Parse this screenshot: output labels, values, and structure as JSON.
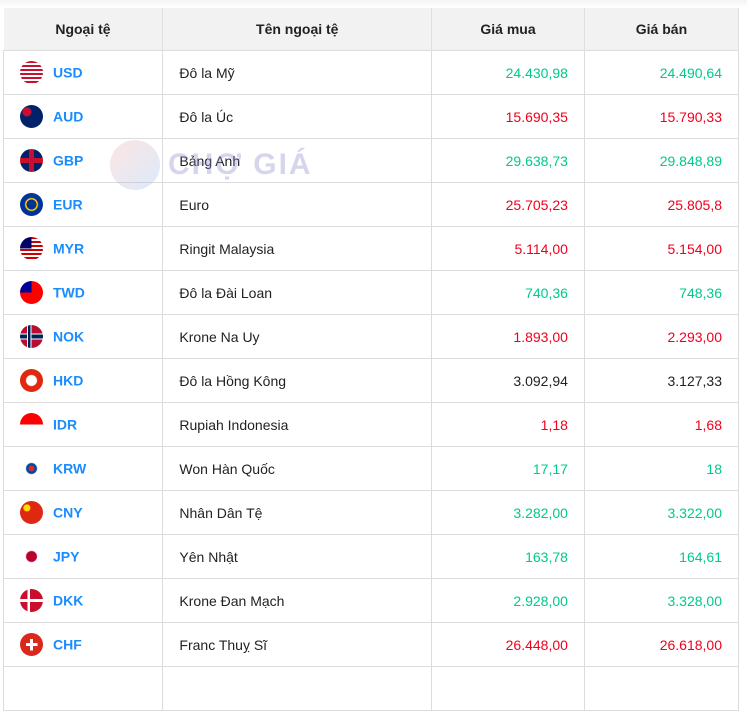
{
  "headers": [
    "Ngoại tệ",
    "Tên ngoại tệ",
    "Giá mua",
    "Giá bán"
  ],
  "watermark": "CHỢ GIÁ",
  "colors": {
    "up": "#00c98d",
    "down": "#f0001c",
    "code": "#1a8cff"
  },
  "rows": [
    {
      "code": "USD",
      "name": "Đô la Mỹ",
      "buy": "24.430,98",
      "sell": "24.490,64",
      "trend": "up",
      "flag": "us-flag"
    },
    {
      "code": "AUD",
      "name": "Đô la Úc",
      "buy": "15.690,35",
      "sell": "15.790,33",
      "trend": "down",
      "flag": "au-flag"
    },
    {
      "code": "GBP",
      "name": "Bảng Anh",
      "buy": "29.638,73",
      "sell": "29.848,89",
      "trend": "up",
      "flag": "gb-flag"
    },
    {
      "code": "EUR",
      "name": "Euro",
      "buy": "25.705,23",
      "sell": "25.805,8",
      "trend": "down",
      "flag": "eu-flag"
    },
    {
      "code": "MYR",
      "name": "Ringit Malaysia",
      "buy": "5.114,00",
      "sell": "5.154,00",
      "trend": "down",
      "flag": "my-flag"
    },
    {
      "code": "TWD",
      "name": "Đô la Đài Loan",
      "buy": "740,36",
      "sell": "748,36",
      "trend": "up",
      "flag": "tw-flag"
    },
    {
      "code": "NOK",
      "name": "Krone Na Uy",
      "buy": "1.893,00",
      "sell": "2.293,00",
      "trend": "down",
      "flag": "no-flag"
    },
    {
      "code": "HKD",
      "name": "Đô la Hồng Kông",
      "buy": "3.092,94",
      "sell": "3.127,33",
      "trend": "same",
      "flag": "hk-flag"
    },
    {
      "code": "IDR",
      "name": "Rupiah Indonesia",
      "buy": "1,18",
      "sell": "1,68",
      "trend": "down",
      "flag": "id-flag"
    },
    {
      "code": "KRW",
      "name": "Won Hàn Quốc",
      "buy": "17,17",
      "sell": "18",
      "trend": "up",
      "flag": "kr-flag"
    },
    {
      "code": "CNY",
      "name": "Nhân Dân Tệ",
      "buy": "3.282,00",
      "sell": "3.322,00",
      "trend": "up",
      "flag": "cn-flag"
    },
    {
      "code": "JPY",
      "name": "Yên Nhật",
      "buy": "163,78",
      "sell": "164,61",
      "trend": "up",
      "flag": "jp-flag"
    },
    {
      "code": "DKK",
      "name": "Krone Đan Mạch",
      "buy": "2.928,00",
      "sell": "3.328,00",
      "trend": "up",
      "flag": "dk-flag"
    },
    {
      "code": "CHF",
      "name": "Franc Thuỵ Sĩ",
      "buy": "26.448,00",
      "sell": "26.618,00",
      "trend": "down",
      "flag": "ch-flag"
    }
  ]
}
